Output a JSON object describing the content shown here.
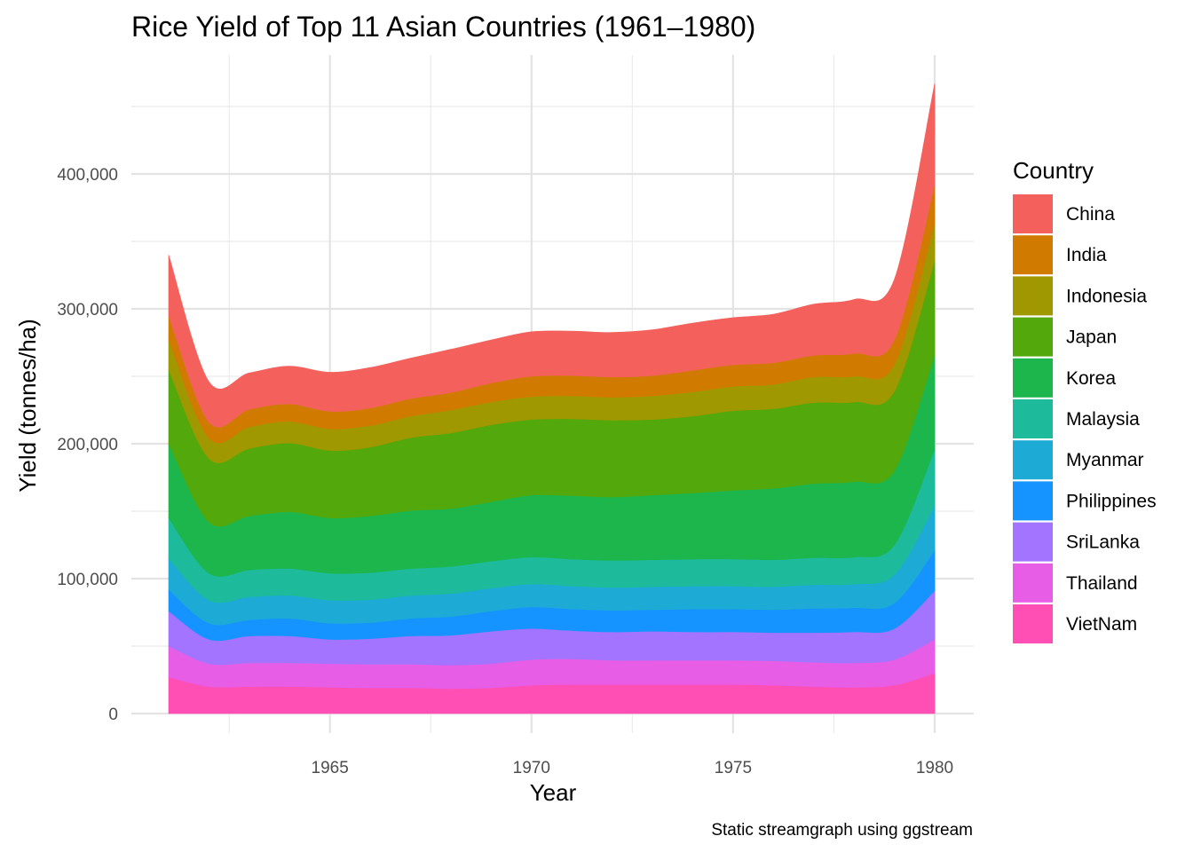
{
  "chart_data": {
    "type": "area",
    "subtype": "streamgraph",
    "title": "Rice Yield of Top 11 Asian Countries (1961–1980)",
    "xlabel": "Year",
    "ylabel": "Yield (tonnes/ha)",
    "caption": "Static streamgraph using ggstream",
    "legend_title": "Country",
    "legend_position": "right",
    "grid": true,
    "xlim": [
      1961,
      1980
    ],
    "ylim": [
      0,
      460000
    ],
    "x_ticks": [
      1965,
      1970,
      1975,
      1980
    ],
    "y_ticks": [
      0,
      100000,
      200000,
      300000,
      400000
    ],
    "y_tick_labels": [
      "0",
      "100,000",
      "200,000",
      "300,000",
      "400,000"
    ],
    "x": [
      1961,
      1962,
      1963,
      1964,
      1965,
      1966,
      1967,
      1968,
      1969,
      1970,
      1971,
      1972,
      1973,
      1974,
      1975,
      1976,
      1977,
      1978,
      1979,
      1980
    ],
    "series": [
      {
        "name": "VietNam",
        "color": "#FF4FB4",
        "values": [
          27000,
          20000,
          20000,
          20000,
          19500,
          19000,
          19000,
          18500,
          19000,
          21000,
          21500,
          21500,
          21500,
          21500,
          21500,
          21000,
          20000,
          19500,
          21000,
          30000
        ]
      },
      {
        "name": "Thailand",
        "color": "#E75DE6",
        "values": [
          23000,
          17000,
          17500,
          17500,
          17500,
          17500,
          17500,
          17500,
          18000,
          19000,
          19000,
          18000,
          18000,
          18000,
          18000,
          18000,
          18000,
          18000,
          19000,
          25000
        ]
      },
      {
        "name": "SriLanka",
        "color": "#A374FF",
        "values": [
          26000,
          18000,
          20000,
          20000,
          18000,
          19000,
          21000,
          22000,
          24000,
          23000,
          21000,
          21000,
          21500,
          21000,
          21000,
          21000,
          22000,
          23000,
          23000,
          36000
        ]
      },
      {
        "name": "Philippines",
        "color": "#1594FF",
        "values": [
          16000,
          12000,
          12000,
          13000,
          12000,
          12000,
          13000,
          14000,
          15000,
          16000,
          16000,
          16000,
          16000,
          17000,
          17000,
          17000,
          18000,
          18000,
          19000,
          30000
        ]
      },
      {
        "name": "Myanmar",
        "color": "#1DABD6",
        "values": [
          23000,
          17000,
          17000,
          17000,
          17000,
          17000,
          17000,
          17000,
          17000,
          17000,
          17000,
          17000,
          17000,
          17000,
          17000,
          17000,
          17500,
          17500,
          21000,
          33000
        ]
      },
      {
        "name": "Malaysia",
        "color": "#1DBA9C",
        "values": [
          30000,
          20000,
          20000,
          20000,
          20000,
          20000,
          20000,
          20000,
          20000,
          20000,
          20000,
          20000,
          20000,
          20000,
          20000,
          20000,
          20000,
          20000,
          22000,
          42000
        ]
      },
      {
        "name": "Korea",
        "color": "#1CB64D",
        "values": [
          55000,
          38000,
          40000,
          42000,
          41000,
          42000,
          43000,
          43000,
          44000,
          46000,
          47000,
          47000,
          48000,
          49000,
          51000,
          53000,
          55000,
          56000,
          55000,
          70000
        ]
      },
      {
        "name": "Japan",
        "color": "#53A80B",
        "values": [
          55000,
          47000,
          50000,
          51000,
          50000,
          51000,
          54000,
          56000,
          57000,
          56000,
          57000,
          57000,
          56000,
          57000,
          59000,
          59000,
          60000,
          59000,
          59000,
          70000
        ]
      },
      {
        "name": "Indonesia",
        "color": "#9F9800",
        "values": [
          22000,
          15000,
          16000,
          16000,
          16000,
          16000,
          16000,
          17000,
          17000,
          17000,
          17000,
          17000,
          17500,
          18000,
          18000,
          18000,
          19000,
          19000,
          20000,
          28000
        ]
      },
      {
        "name": "India",
        "color": "#D07B00",
        "values": [
          18000,
          12000,
          13000,
          13000,
          13000,
          13000,
          13000,
          13000,
          14000,
          15000,
          15000,
          15000,
          15000,
          16000,
          16000,
          16000,
          16000,
          17000,
          18000,
          28000
        ]
      },
      {
        "name": "China",
        "color": "#F4615C",
        "values": [
          45000,
          30000,
          27000,
          28000,
          29000,
          30000,
          30000,
          32000,
          32000,
          33000,
          33000,
          33000,
          34000,
          35000,
          35000,
          36000,
          38000,
          40000,
          45000,
          75000
        ]
      }
    ]
  }
}
